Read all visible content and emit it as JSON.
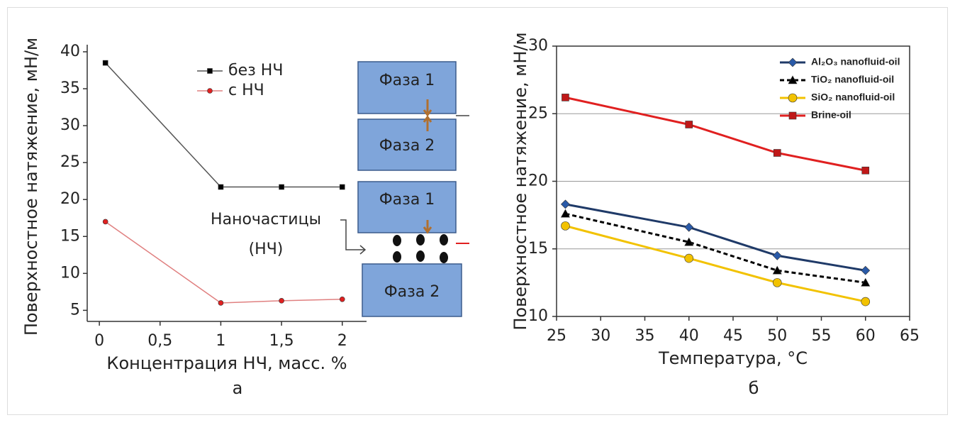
{
  "chart_data": [
    {
      "type": "line",
      "panel": "а",
      "xlabel": "Концентрация НЧ, масс. %",
      "ylabel": "Поверхностное натяжение, мН/м",
      "x": [
        0.05,
        1,
        1.5,
        2
      ],
      "series": [
        {
          "name": "без НЧ",
          "color": "#555555",
          "marker_color": "#000000",
          "marker": "square",
          "values": [
            38.5,
            21.7,
            21.7,
            21.7
          ]
        },
        {
          "name": "с НЧ",
          "color": "#e08080",
          "marker_color": "#e02020",
          "marker": "dot",
          "values": [
            17,
            6,
            6.3,
            6.5
          ]
        }
      ],
      "xlim": [
        -0.1,
        2.2
      ],
      "xticks": [
        0,
        {
          "value": 0.5,
          "label": "0,5"
        },
        1,
        {
          "value": 1.5,
          "label": "1,5"
        },
        2
      ],
      "ylim": [
        3.5,
        40
      ],
      "yticks": [
        5,
        10,
        15,
        20,
        25,
        30,
        35,
        40
      ],
      "grid": false,
      "legend": "top",
      "annotations": [
        "Фаза 1",
        "Фаза 2",
        "Фаза 1",
        "Наночастицы",
        "(НЧ)",
        "Фаза 2"
      ]
    },
    {
      "type": "line",
      "panel": "б",
      "xlabel": "Температура, °С",
      "ylabel": "Поверхностное натяжение, мН/м",
      "x": [
        26,
        40,
        50,
        60
      ],
      "series": [
        {
          "name": "Al₂O₃ nanofluid-oil",
          "color": "#1f3a68",
          "marker_color": "#2a5aa8",
          "marker": "diamond",
          "values": [
            18.3,
            16.6,
            14.5,
            13.4
          ]
        },
        {
          "name": "TiO₂ nanofluid-oil",
          "color": "#000000",
          "marker_color": "#000000",
          "marker": "triangle",
          "dashed": true,
          "values": [
            17.6,
            15.5,
            13.4,
            12.5
          ]
        },
        {
          "name": "SiO₂ nanofluid-oil",
          "color": "#f2c200",
          "marker_color": "#f2c200",
          "marker": "circle",
          "values": [
            16.7,
            14.3,
            12.5,
            11.1
          ]
        },
        {
          "name": "Brine-oil",
          "color": "#e02020",
          "marker_color": "#c01818",
          "marker": "square",
          "values": [
            26.2,
            24.2,
            22.1,
            20.8
          ]
        }
      ],
      "xlim": [
        25,
        65
      ],
      "xticks": [
        25,
        30,
        35,
        40,
        45,
        50,
        55,
        60,
        65
      ],
      "ylim": [
        10,
        30
      ],
      "yticks": [
        10,
        15,
        20,
        25,
        30
      ],
      "grid": true,
      "legend": "top-right"
    }
  ]
}
